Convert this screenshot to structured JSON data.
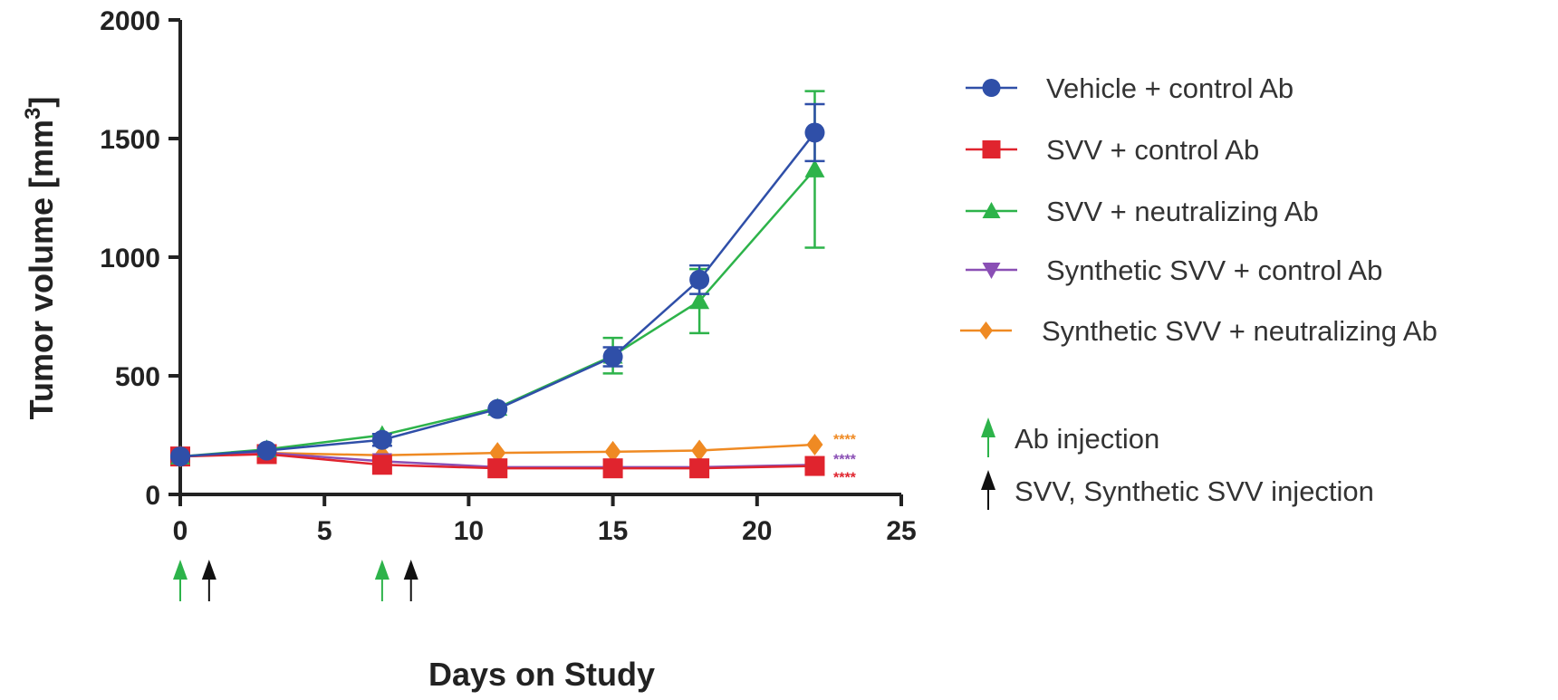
{
  "chart_data": {
    "type": "line",
    "title": "",
    "xlabel": "Days on Study",
    "ylabel": "Tumor volume [mm",
    "ylabel_superscript": "3",
    "ylabel_suffix": "]",
    "xlim": [
      0,
      25
    ],
    "ylim": [
      0,
      2000
    ],
    "xticks": [
      "0",
      "5",
      "10",
      "15",
      "20",
      "25"
    ],
    "yticks": [
      "0",
      "500",
      "1000",
      "1500",
      "2000"
    ],
    "grid": false,
    "legend_position": "right",
    "x": [
      0,
      3,
      7,
      11,
      15,
      18,
      22
    ],
    "series": [
      {
        "name": "Vehicle + control Ab",
        "color": "#2f4fa8",
        "marker": "circle",
        "values": [
          160,
          185,
          230,
          360,
          580,
          905,
          1525
        ],
        "errors": [
          10,
          15,
          25,
          20,
          40,
          60,
          120
        ]
      },
      {
        "name": "SVV + control Ab",
        "color": "#e0242e",
        "marker": "square",
        "values": [
          160,
          170,
          125,
          110,
          110,
          110,
          120
        ],
        "errors": [
          10,
          10,
          15,
          10,
          10,
          10,
          10
        ]
      },
      {
        "name": "SVV + neutralizing Ab",
        "color": "#2db34a",
        "marker": "triangle-up",
        "values": [
          160,
          190,
          250,
          365,
          585,
          815,
          1370
        ],
        "errors": [
          10,
          15,
          20,
          20,
          75,
          135,
          330
        ]
      },
      {
        "name": "Synthetic SVV + control Ab",
        "color": "#8a4fb5",
        "marker": "triangle-down",
        "values": [
          160,
          175,
          140,
          115,
          115,
          115,
          125
        ],
        "errors": [
          10,
          10,
          10,
          10,
          10,
          10,
          10
        ]
      },
      {
        "name": "Synthetic SVV + neutralizing Ab",
        "color": "#ef8a23",
        "marker": "diamond",
        "values": [
          160,
          175,
          165,
          175,
          180,
          185,
          210
        ],
        "errors": [
          10,
          10,
          10,
          10,
          10,
          10,
          10
        ]
      }
    ],
    "significance": [
      {
        "label": "****",
        "color": "#ef8a23",
        "y": 235
      },
      {
        "label": "****",
        "color": "#8a4fb5",
        "y": 150
      },
      {
        "label": "****",
        "color": "#e0242e",
        "y": 105
      }
    ],
    "injections": [
      {
        "name": "Ab injection",
        "color": "#2db34a",
        "days": [
          0,
          7
        ]
      },
      {
        "name": "SVV, Synthetic SVV injection",
        "color": "#111111",
        "days": [
          1,
          8
        ]
      }
    ]
  }
}
